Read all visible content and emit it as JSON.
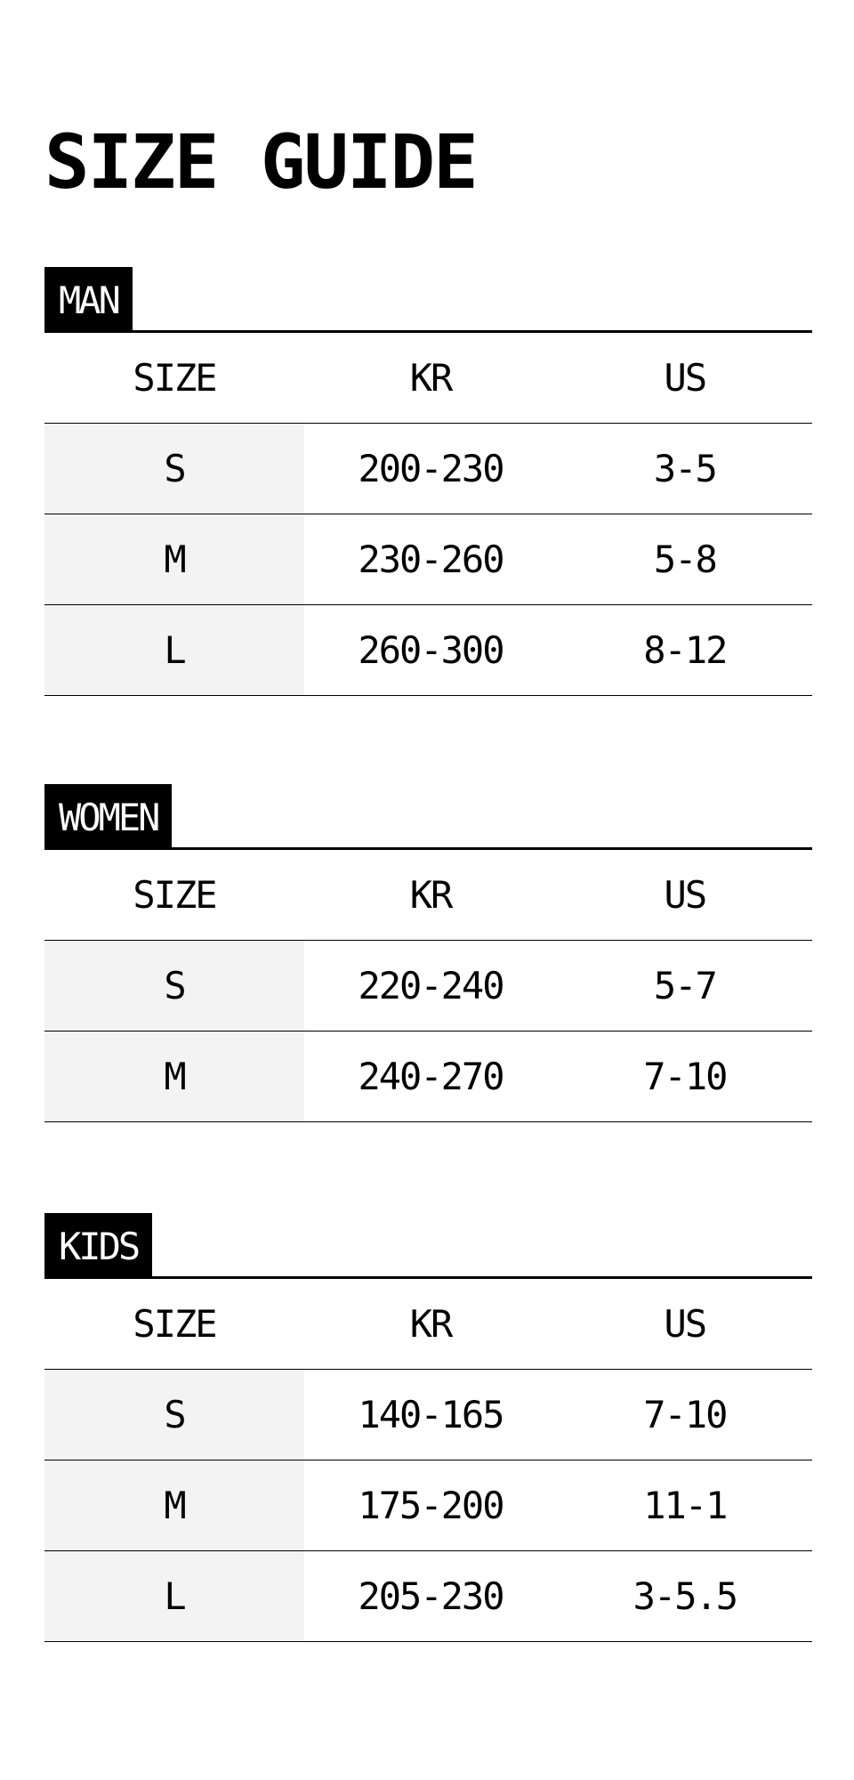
{
  "title": "SIZE GUIDE",
  "colors": {
    "tag_bg": "#000000",
    "tag_text": "#ffffff",
    "size_column_bg": "#f3f3f3"
  },
  "sections": [
    {
      "label": "MAN",
      "headers": [
        "SIZE",
        "KR",
        "US"
      ],
      "rows": [
        [
          "S",
          "200-230",
          "3-5"
        ],
        [
          "M",
          "230-260",
          "5-8"
        ],
        [
          "L",
          "260-300",
          "8-12"
        ]
      ]
    },
    {
      "label": "WOMEN",
      "headers": [
        "SIZE",
        "KR",
        "US"
      ],
      "rows": [
        [
          "S",
          "220-240",
          "5-7"
        ],
        [
          "M",
          "240-270",
          "7-10"
        ]
      ]
    },
    {
      "label": "KIDS",
      "headers": [
        "SIZE",
        "KR",
        "US"
      ],
      "rows": [
        [
          "S",
          "140-165",
          "7-10"
        ],
        [
          "M",
          "175-200",
          "11-1"
        ],
        [
          "L",
          "205-230",
          "3-5.5"
        ]
      ]
    }
  ]
}
